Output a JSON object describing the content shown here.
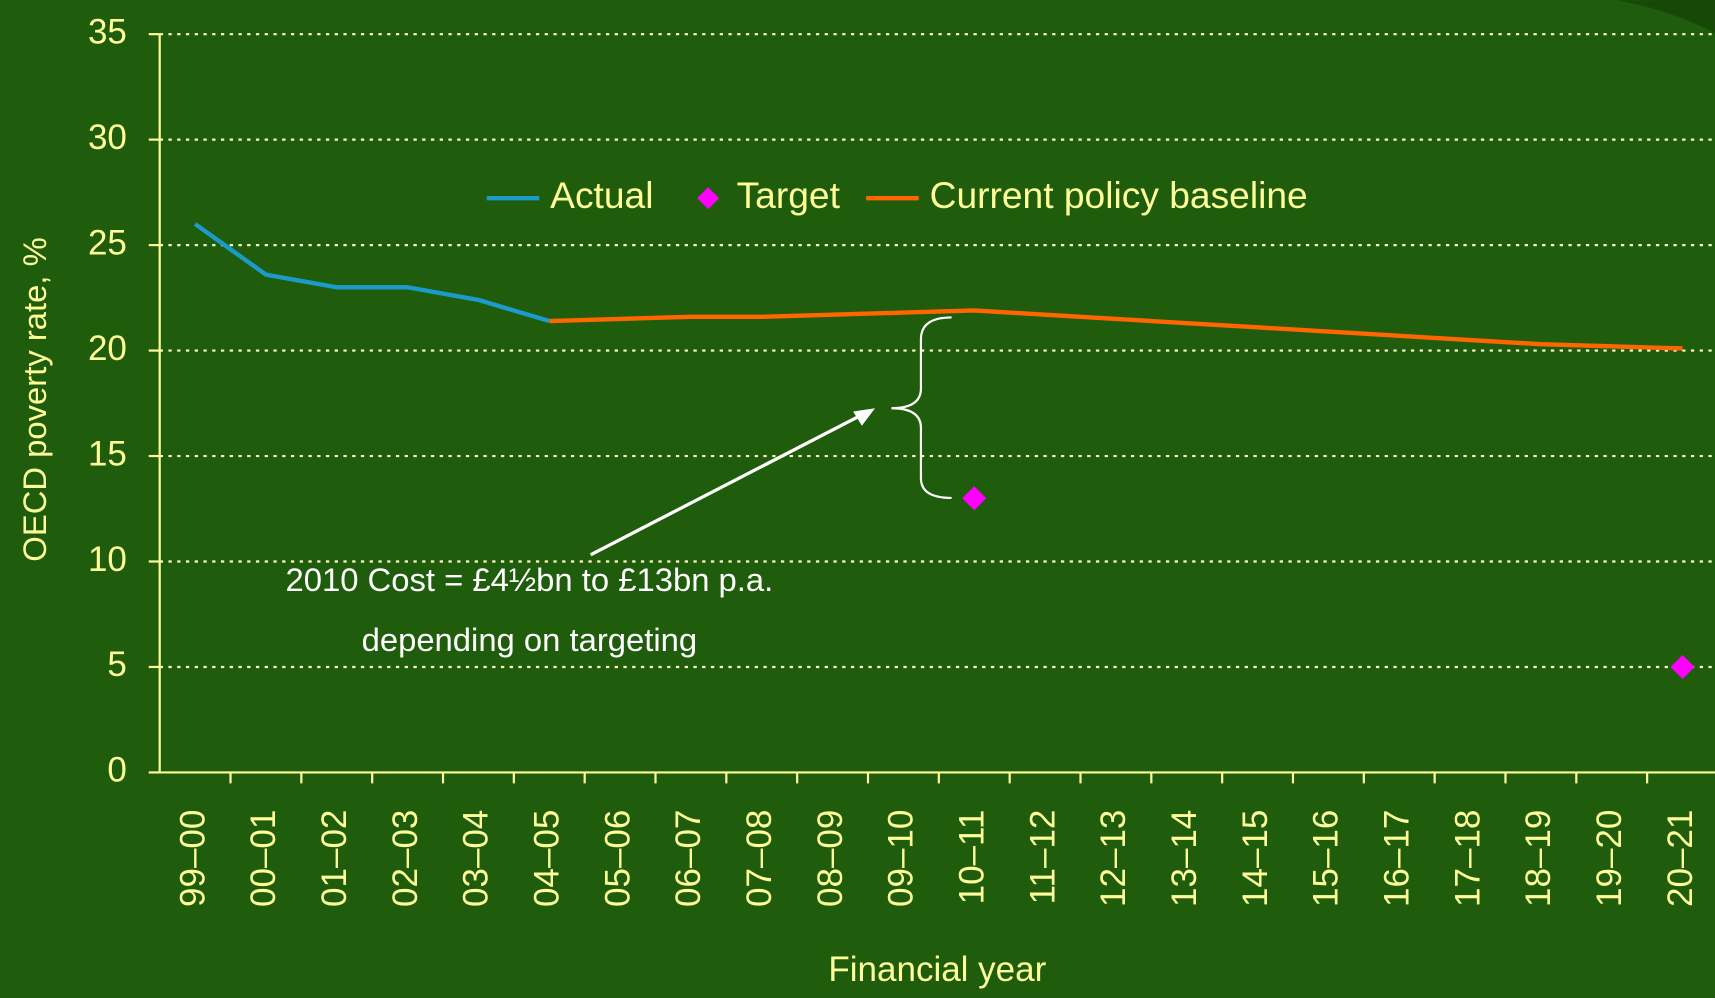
{
  "chart_data": {
    "type": "line",
    "y_label": "OECD poverty rate, %",
    "x_label": "Financial year",
    "categories": [
      "99–00",
      "00–01",
      "01–02",
      "02–03",
      "03–04",
      "04–05",
      "05–06",
      "06–07",
      "07–08",
      "08–09",
      "09–10",
      "10–11",
      "11–12",
      "12–13",
      "13–14",
      "14–15",
      "15–16",
      "16–17",
      "17–18",
      "18–19",
      "19–20",
      "20–21"
    ],
    "series": [
      {
        "name": "Actual",
        "color": "#1a9bc9",
        "marker": "line",
        "values": [
          26,
          23.6,
          23,
          23,
          22.4,
          21.4,
          null,
          null,
          null,
          null,
          null,
          null,
          null,
          null,
          null,
          null,
          null,
          null,
          null,
          null,
          null,
          null
        ]
      },
      {
        "name": "Target",
        "color": "#ff00ff",
        "marker": "diamond",
        "values": [
          null,
          null,
          null,
          null,
          null,
          null,
          null,
          null,
          null,
          null,
          null,
          13,
          null,
          null,
          null,
          null,
          null,
          null,
          null,
          null,
          null,
          5
        ]
      },
      {
        "name": "Current policy baseline",
        "color": "#ff6600",
        "marker": "line",
        "values": [
          null,
          null,
          null,
          null,
          null,
          21.4,
          21.5,
          21.6,
          21.6,
          21.7,
          21.8,
          21.9,
          21.7,
          21.5,
          21.3,
          21.1,
          20.9,
          20.7,
          20.5,
          20.3,
          20.2,
          20.1
        ]
      }
    ],
    "ylim": [
      0,
      35
    ],
    "yticks": [
      0,
      5,
      10,
      15,
      20,
      25,
      30,
      35
    ],
    "grid": true,
    "annotations": [
      "2010 Cost = £4½bn to £13bn p.a.",
      "depending on targeting"
    ]
  }
}
